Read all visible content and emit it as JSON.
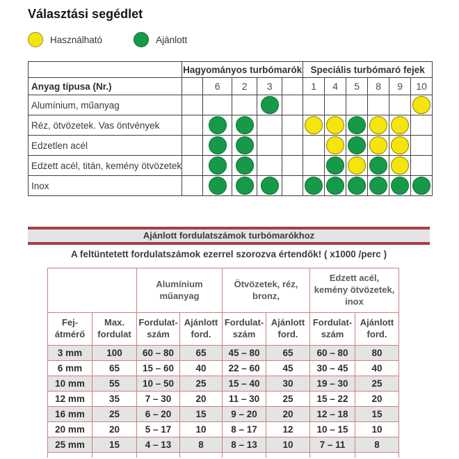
{
  "page_title": "Választási segédlet",
  "legend": {
    "usable_label": "Használható",
    "recommended_label": "Ajánlott"
  },
  "colors": {
    "usable_yellow": "#f6e50c",
    "recommended_green": "#169a49",
    "banner_red": "#a83e3e",
    "matrix_table_border": "#3f3f3f",
    "rpm_table_border": "#c9827f",
    "rpm_row_gray": "#e4e4e4"
  },
  "selection_table": {
    "group_headers": [
      "Hagyományos turbómarók",
      "Speciális turbómaró fejek"
    ],
    "row_header": "Anyag típusa (Nr.)",
    "tool_numbers": [
      "6",
      "2",
      "3",
      "1",
      "4",
      "5",
      "8",
      "9",
      "10"
    ],
    "dot_legend": {
      "A": "Ajánlott (zöld)",
      "H": "Használható (sárga)"
    },
    "rows": [
      {
        "label": "Alumínium, műanyag",
        "dots": [
          "",
          "",
          "A",
          "",
          "",
          "",
          "",
          "",
          "H"
        ]
      },
      {
        "label": "Réz, ötvözetek. Vas öntvények",
        "dots": [
          "A",
          "A",
          "",
          "H",
          "H",
          "A",
          "H",
          "H",
          ""
        ]
      },
      {
        "label": "Edzetlen acél",
        "dots": [
          "A",
          "A",
          "",
          "",
          "H",
          "A",
          "H",
          "H",
          ""
        ]
      },
      {
        "label": "Edzett acél, titán, kemény ötvözetek",
        "dots": [
          "A",
          "A",
          "",
          "",
          "A",
          "H",
          "A",
          "H",
          ""
        ]
      },
      {
        "label": "Inox",
        "dots": [
          "A",
          "A",
          "A",
          "A",
          "A",
          "A",
          "A",
          "A",
          "A"
        ]
      }
    ]
  },
  "rpm_section": {
    "banner_title": "Ajánlott fordulatszámok turbómarókhoz",
    "note": "A feltüntetett fordulatszámok ezerrel szorozva értendők! ( x1000 /perc )",
    "table": {
      "material_groups": [
        "Alumínium műanyag",
        "Ötvözetek, réz, bronz,",
        "Edzett acél, kemény ötvözetek, inox"
      ],
      "column_headers": [
        "Fej-átmérő",
        "Max. fordulat",
        "Fordulat-szám",
        "Ajánlott ford.",
        "Fordulat-szám",
        "Ajánlott ford.",
        "Fordulat-szám",
        "Ajánlott ford."
      ],
      "rows": [
        [
          "3 mm",
          "100",
          "60 – 80",
          "65",
          "45 – 80",
          "65",
          "60 – 80",
          "80"
        ],
        [
          "6 mm",
          "65",
          "15 – 60",
          "40",
          "22 – 60",
          "45",
          "30 – 45",
          "40"
        ],
        [
          "10 mm",
          "55",
          "10 – 50",
          "25",
          "15 – 40",
          "30",
          "19 – 30",
          "25"
        ],
        [
          "12 mm",
          "35",
          "7 – 30",
          "20",
          "11 – 30",
          "25",
          "15 – 22",
          "20"
        ],
        [
          "16 mm",
          "25",
          "6 – 20",
          "15",
          "9 – 20",
          "20",
          "12 – 18",
          "15"
        ],
        [
          "20 mm",
          "20",
          "5 – 17",
          "10",
          "8 – 17",
          "12",
          "10 – 15",
          "10"
        ],
        [
          "25 mm",
          "15",
          "4 – 13",
          "8",
          "8 – 13",
          "10",
          "7 – 11",
          "8"
        ]
      ]
    }
  }
}
